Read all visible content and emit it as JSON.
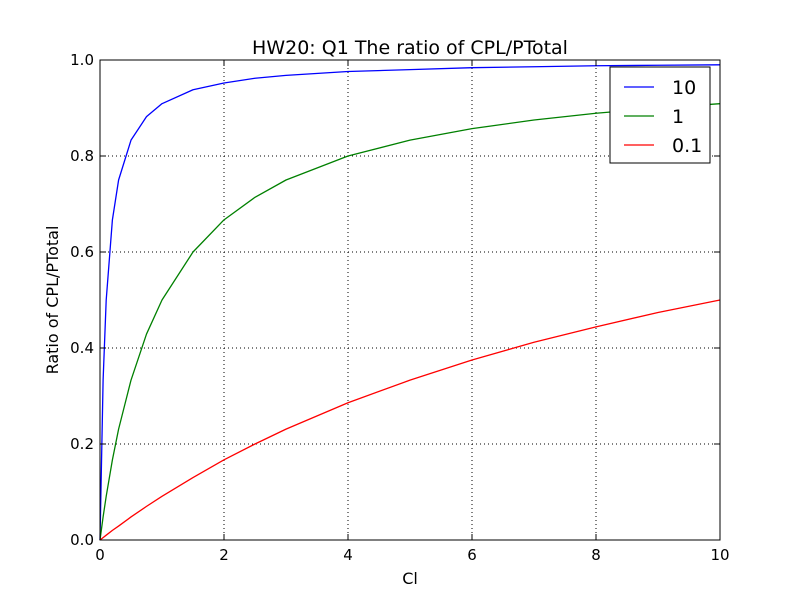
{
  "chart_data": {
    "type": "line",
    "title": "HW20: Q1 The ratio of CPL/PTotal",
    "xlabel": "Cl",
    "ylabel": "Ratio of CPL/PTotal",
    "xlim": [
      0,
      10
    ],
    "ylim": [
      0,
      1
    ],
    "xticks": [
      "0",
      "2",
      "4",
      "6",
      "8",
      "10"
    ],
    "yticks": [
      "0.0",
      "0.2",
      "0.4",
      "0.6",
      "0.8",
      "1.0"
    ],
    "grid": true,
    "legend_position": "top-right",
    "x": [
      0,
      0.05,
      0.1,
      0.2,
      0.3,
      0.5,
      0.75,
      1,
      1.5,
      2,
      2.5,
      3,
      4,
      5,
      6,
      7,
      8,
      9,
      10
    ],
    "series": [
      {
        "name": "10",
        "color": "#0000ff",
        "values": [
          0,
          0.333,
          0.5,
          0.667,
          0.75,
          0.833,
          0.882,
          0.909,
          0.938,
          0.952,
          0.962,
          0.968,
          0.976,
          0.98,
          0.984,
          0.986,
          0.988,
          0.989,
          0.99
        ]
      },
      {
        "name": "1",
        "color": "#008000",
        "values": [
          0,
          0.048,
          0.091,
          0.167,
          0.231,
          0.333,
          0.429,
          0.5,
          0.6,
          0.667,
          0.714,
          0.75,
          0.8,
          0.833,
          0.857,
          0.875,
          0.889,
          0.9,
          0.909
        ]
      },
      {
        "name": "0.1",
        "color": "#ff0000",
        "values": [
          0,
          0.005,
          0.01,
          0.02,
          0.029,
          0.048,
          0.07,
          0.091,
          0.13,
          0.167,
          0.2,
          0.231,
          0.286,
          0.333,
          0.375,
          0.412,
          0.444,
          0.474,
          0.5
        ]
      }
    ]
  }
}
